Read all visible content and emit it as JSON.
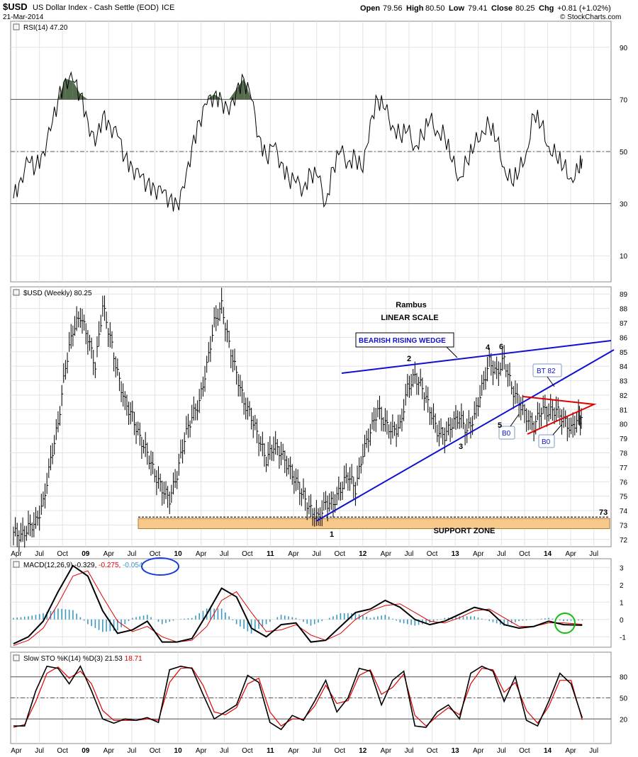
{
  "header": {
    "symbol": "$USD",
    "name": "US Dollar Index - Cash Settle (EOD)",
    "exchange": "ICE",
    "date": "21-Mar-2014",
    "open_label": "Open",
    "open": "79.56",
    "high_label": "High",
    "high": "80.50",
    "low_label": "Low",
    "low": "79.41",
    "close_label": "Close",
    "close": "80.25",
    "chg_label": "Chg",
    "chg": "+0.81 (+1.02%)",
    "brand": "© StockCharts.com"
  },
  "colors": {
    "grid": "#e3e3e3",
    "line": "#000000",
    "signal": "#e00000",
    "histogram": "#3a9ac4",
    "overbought_fill": "#556b4e",
    "trendline": "#1010d0",
    "triangle": "#e00000",
    "support_fill": "#f7c98a",
    "support_stroke": "#b47a2c",
    "macd_circle": "#1a3fd8",
    "green_circle": "#10c010"
  },
  "x_axis_labels": [
    "Apr",
    "Jul",
    "Oct",
    "09",
    "Apr",
    "Jul",
    "Oct",
    "10",
    "Apr",
    "Jul",
    "Oct",
    "11",
    "Apr",
    "Jul",
    "Oct",
    "12",
    "Apr",
    "Jul",
    "Oct",
    "13",
    "Apr",
    "Jul",
    "Oct",
    "14",
    "Apr",
    "Jul"
  ],
  "chart_data": [
    {
      "type": "line",
      "name": "rsi",
      "label": "RSI(14) 47.20",
      "yticks": [
        90,
        70,
        50,
        30,
        10
      ],
      "ylim": [
        0,
        100
      ],
      "levels": [
        70,
        50,
        30
      ],
      "x": [
        0,
        4,
        8,
        12,
        16,
        20,
        24,
        28,
        32,
        36,
        40,
        44,
        48,
        52,
        56,
        60,
        64,
        68,
        72,
        76,
        80,
        84,
        88,
        92,
        96,
        100,
        104,
        108,
        112,
        116,
        120,
        124,
        128,
        132,
        136,
        140,
        144,
        148,
        152,
        156,
        160,
        164,
        168,
        172,
        176,
        180,
        184,
        188,
        192,
        196,
        200,
        204,
        208,
        212,
        216,
        220,
        224,
        228,
        232,
        236,
        240,
        244,
        248,
        252,
        256,
        260,
        264,
        268,
        272,
        276,
        280,
        284,
        288,
        292,
        296,
        300,
        304,
        306
      ],
      "values": [
        32,
        40,
        46,
        44,
        50,
        58,
        70,
        78,
        77,
        72,
        62,
        52,
        64,
        60,
        56,
        48,
        44,
        40,
        38,
        36,
        34,
        32,
        30,
        36,
        52,
        62,
        68,
        72,
        70,
        64,
        74,
        78,
        70,
        56,
        48,
        52,
        46,
        40,
        38,
        36,
        42,
        40,
        30,
        44,
        50,
        46,
        48,
        42,
        62,
        70,
        66,
        60,
        56,
        58,
        52,
        56,
        62,
        58,
        56,
        46,
        40,
        46,
        52,
        58,
        60,
        54,
        44,
        38,
        42,
        50,
        64,
        60,
        52,
        48,
        44,
        40,
        42,
        47.2
      ]
    },
    {
      "type": "bar",
      "name": "usd_weekly",
      "label": "$USD (Weekly) 80.25",
      "yticks": [
        89,
        88,
        87,
        86,
        85,
        84,
        83,
        82,
        81,
        80,
        79,
        78,
        77,
        76,
        75,
        74,
        73,
        72
      ],
      "ylim": [
        71.5,
        89.5
      ],
      "x": [
        0,
        4,
        8,
        12,
        16,
        20,
        24,
        28,
        32,
        36,
        40,
        44,
        48,
        52,
        56,
        60,
        64,
        68,
        72,
        76,
        80,
        84,
        88,
        92,
        96,
        100,
        104,
        108,
        112,
        116,
        120,
        124,
        128,
        132,
        136,
        140,
        144,
        148,
        152,
        156,
        160,
        164,
        168,
        172,
        176,
        180,
        184,
        188,
        192,
        196,
        200,
        204,
        208,
        212,
        216,
        220,
        224,
        228,
        232,
        236,
        240,
        244,
        248,
        252,
        256,
        260,
        264,
        268,
        272,
        276,
        280,
        284,
        288,
        292,
        296,
        300,
        304,
        306
      ],
      "values": [
        72.5,
        72.2,
        72.8,
        73.2,
        74.5,
        77.5,
        80,
        84,
        86.5,
        87.5,
        86,
        84,
        88.2,
        86,
        83.5,
        81.5,
        80.5,
        79,
        78,
        76.5,
        75.5,
        74.8,
        76.5,
        79,
        80.5,
        81.5,
        84,
        87,
        88.2,
        85.5,
        83.5,
        81.5,
        80.5,
        79,
        77.5,
        78.5,
        78,
        77,
        76,
        75,
        74,
        73.5,
        74.5,
        74.5,
        75.5,
        76.5,
        75.5,
        78,
        79.5,
        81,
        80,
        79.5,
        79.8,
        82.5,
        83.3,
        82.5,
        81,
        79.5,
        79.2,
        80,
        80.5,
        79.5,
        80.5,
        82.5,
        84.3,
        83.5,
        84.5,
        82.5,
        81.5,
        80.5,
        79.8,
        81,
        80.8,
        81,
        80.3,
        79.6,
        80.5,
        80.25
      ]
    },
    {
      "type": "line",
      "name": "macd",
      "label": "MACD(12,26,9)",
      "macd": "-0.329",
      "signal": "-0.275",
      "histogram": "-0.054",
      "yticks": [
        3,
        2,
        1,
        0,
        -1
      ],
      "ylim": [
        -1.6,
        3.5
      ],
      "x": [
        0,
        8,
        16,
        24,
        32,
        40,
        48,
        56,
        64,
        72,
        80,
        88,
        96,
        104,
        112,
        120,
        128,
        136,
        144,
        152,
        160,
        168,
        176,
        184,
        192,
        200,
        208,
        216,
        224,
        232,
        240,
        248,
        256,
        264,
        272,
        280,
        288,
        296,
        306
      ],
      "values": [
        -1.4,
        -1.0,
        -0.1,
        1.6,
        3.1,
        2.5,
        0.5,
        -0.8,
        -0.6,
        -0.1,
        -1.3,
        -1.3,
        -1.1,
        0.3,
        1.8,
        1.3,
        -0.5,
        -1.0,
        -0.3,
        -0.2,
        -1.3,
        -1.2,
        -0.4,
        0.4,
        0.6,
        1.1,
        0.7,
        0.0,
        -0.3,
        -0.1,
        0.3,
        0.7,
        0.5,
        -0.3,
        -0.5,
        -0.4,
        -0.1,
        -0.3,
        -0.33
      ],
      "signal_values": [
        -1.5,
        -1.2,
        -0.5,
        0.9,
        2.5,
        2.8,
        1.3,
        -0.1,
        -0.7,
        -0.4,
        -1.0,
        -1.3,
        -1.2,
        -0.4,
        1.1,
        1.6,
        0.4,
        -0.7,
        -0.6,
        -0.3,
        -0.9,
        -1.2,
        -0.8,
        0.0,
        0.5,
        0.8,
        0.9,
        0.4,
        -0.1,
        -0.2,
        0.1,
        0.5,
        0.6,
        0.1,
        -0.4,
        -0.4,
        -0.2,
        -0.2,
        -0.28
      ]
    },
    {
      "type": "line",
      "name": "slow_sto",
      "label": "Slow STO %K(14) %D(3)",
      "k": "21.53",
      "d": "18.71",
      "yticks": [
        80,
        50,
        20
      ],
      "ylim": [
        -15,
        115
      ],
      "levels": [
        80,
        50,
        20
      ],
      "x": [
        0,
        6,
        12,
        18,
        24,
        30,
        36,
        42,
        48,
        54,
        60,
        66,
        72,
        78,
        84,
        90,
        96,
        102,
        108,
        114,
        120,
        126,
        132,
        138,
        144,
        150,
        156,
        162,
        168,
        174,
        180,
        186,
        192,
        198,
        204,
        210,
        216,
        222,
        228,
        234,
        240,
        246,
        252,
        258,
        264,
        270,
        276,
        282,
        288,
        294,
        300,
        306
      ],
      "values": [
        10,
        10,
        60,
        95,
        92,
        70,
        95,
        60,
        20,
        14,
        20,
        18,
        22,
        15,
        90,
        95,
        92,
        55,
        20,
        30,
        40,
        82,
        72,
        15,
        5,
        25,
        18,
        45,
        75,
        30,
        50,
        92,
        88,
        40,
        75,
        88,
        10,
        8,
        30,
        40,
        20,
        85,
        95,
        88,
        45,
        80,
        18,
        10,
        45,
        85,
        70,
        21.53
      ],
      "d_values": [
        8,
        12,
        45,
        85,
        94,
        78,
        88,
        70,
        32,
        18,
        18,
        18,
        20,
        18,
        72,
        92,
        93,
        68,
        30,
        26,
        36,
        70,
        78,
        30,
        10,
        20,
        20,
        38,
        68,
        42,
        46,
        82,
        90,
        55,
        65,
        84,
        25,
        10,
        24,
        36,
        26,
        70,
        92,
        90,
        58,
        72,
        32,
        14,
        38,
        75,
        75,
        18.71
      ]
    }
  ],
  "annotations": {
    "author": "Rambus",
    "scale": "LINEAR SCALE",
    "wedge_label": "BEARISH RISING WEDGE",
    "bt_label": "BT 82",
    "bo_label_1": "B0",
    "bo_label_2": "B0",
    "support_label": "SUPPORT ZONE",
    "support_level": "73",
    "wave_1": "1",
    "wave_2": "2",
    "wave_3": "3",
    "wave_4": "4",
    "wave_5": "5",
    "wave_6": "6"
  }
}
